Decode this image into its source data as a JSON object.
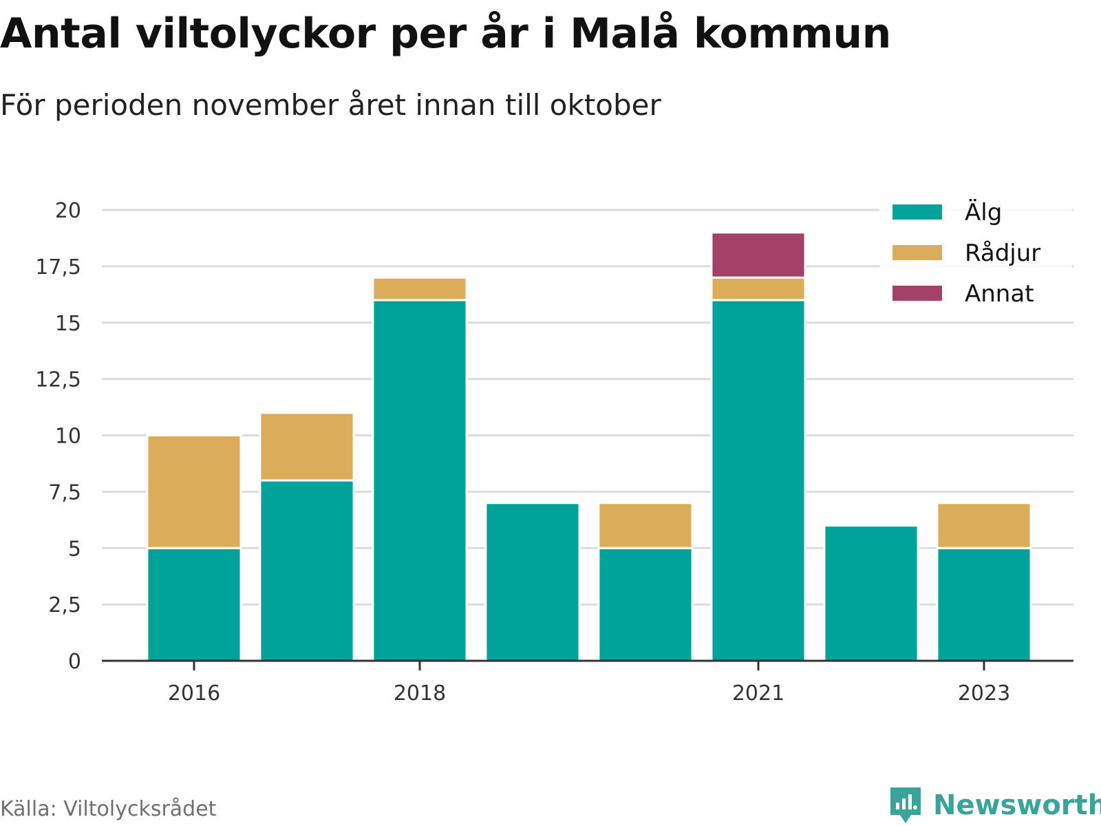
{
  "title": "Antal viltolyckor per år i Malå kommun",
  "subtitle": "För perioden november året innan till oktober",
  "source": "Källa: Viltolycksrådet",
  "brand": {
    "name": "Newsworthy",
    "color": "#3aa39a",
    "icon": "newsworthy-logo-icon"
  },
  "chart_data": {
    "type": "bar",
    "stacked": true,
    "categories": [
      "2016",
      "2017",
      "2018",
      "2019",
      "2020",
      "2021",
      "2022",
      "2023"
    ],
    "x_tick_labels": [
      "2016",
      "",
      "2018",
      "",
      "",
      "2021",
      "",
      "2023"
    ],
    "series": [
      {
        "name": "Älg",
        "color": "#00a39a",
        "values": [
          5,
          8,
          16,
          7,
          5,
          16,
          6,
          5
        ]
      },
      {
        "name": "Rådjur",
        "color": "#dbad5b",
        "values": [
          5,
          3,
          1,
          0,
          2,
          1,
          0,
          2
        ]
      },
      {
        "name": "Annat",
        "color": "#a44168",
        "values": [
          0,
          0,
          0,
          0,
          0,
          2,
          0,
          0
        ]
      }
    ],
    "ylim": [
      0,
      20
    ],
    "y_ticks": [
      0,
      2.5,
      5,
      7.5,
      10,
      12.5,
      15,
      17.5,
      20
    ],
    "y_tick_labels": [
      "0",
      "2,5",
      "5",
      "7,5",
      "10",
      "12,5",
      "15",
      "17,5",
      "20"
    ],
    "grid": true,
    "legend_position": "top-right"
  }
}
